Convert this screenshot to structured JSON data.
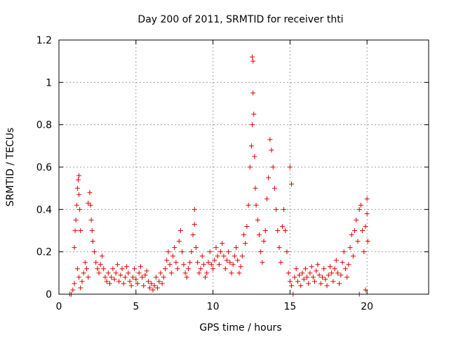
{
  "chart_data": {
    "type": "scatter",
    "title": "Day 200 of 2011, SRMTID for receiver thti",
    "xlabel": "GPS time / hours",
    "ylabel": "SRMTID / TECUs",
    "xlim": [
      0,
      24
    ],
    "ylim": [
      0,
      1.2
    ],
    "xticks": [
      0,
      5,
      10,
      15,
      20
    ],
    "yticks": [
      0,
      0.2,
      0.4,
      0.6,
      0.8,
      1,
      1.2
    ],
    "xtick_labels": [
      "0",
      "5",
      "10",
      "15",
      "20"
    ],
    "ytick_labels": [
      "0",
      "0.2",
      "0.4",
      "0.6",
      "0.8",
      "1",
      "1.2"
    ],
    "grid": true,
    "marker": "+",
    "color": "#e00000",
    "series": [
      {
        "name": "SRMTID",
        "points": [
          [
            0.7,
            0.0
          ],
          [
            0.8,
            0.0
          ],
          [
            0.9,
            0.02
          ],
          [
            1.0,
            0.05
          ],
          [
            1.0,
            0.22
          ],
          [
            1.05,
            0.3
          ],
          [
            1.1,
            0.35
          ],
          [
            1.15,
            0.42
          ],
          [
            1.2,
            0.5
          ],
          [
            1.25,
            0.54
          ],
          [
            1.3,
            0.56
          ],
          [
            1.3,
            0.47
          ],
          [
            1.35,
            0.4
          ],
          [
            1.4,
            0.3
          ],
          [
            1.2,
            0.12
          ],
          [
            1.3,
            0.08
          ],
          [
            1.4,
            0.03
          ],
          [
            1.5,
            0.06
          ],
          [
            1.6,
            0.1
          ],
          [
            1.7,
            0.15
          ],
          [
            1.8,
            0.12
          ],
          [
            1.9,
            0.08
          ],
          [
            1.9,
            0.43
          ],
          [
            2.0,
            0.48
          ],
          [
            2.05,
            0.42
          ],
          [
            2.1,
            0.35
          ],
          [
            2.15,
            0.3
          ],
          [
            2.2,
            0.25
          ],
          [
            2.3,
            0.2
          ],
          [
            2.4,
            0.15
          ],
          [
            2.5,
            0.12
          ],
          [
            2.6,
            0.1
          ],
          [
            2.7,
            0.14
          ],
          [
            2.8,
            0.18
          ],
          [
            2.9,
            0.12
          ],
          [
            3.0,
            0.08
          ],
          [
            3.1,
            0.06
          ],
          [
            3.2,
            0.1
          ],
          [
            3.3,
            0.05
          ],
          [
            3.4,
            0.08
          ],
          [
            3.5,
            0.12
          ],
          [
            3.6,
            0.07
          ],
          [
            3.7,
            0.1
          ],
          [
            3.8,
            0.14
          ],
          [
            3.9,
            0.06
          ],
          [
            4.0,
            0.09
          ],
          [
            4.1,
            0.12
          ],
          [
            4.2,
            0.05
          ],
          [
            4.3,
            0.08
          ],
          [
            4.4,
            0.13
          ],
          [
            4.5,
            0.1
          ],
          [
            4.6,
            0.06
          ],
          [
            4.7,
            0.04
          ],
          [
            4.8,
            0.08
          ],
          [
            4.9,
            0.12
          ],
          [
            5.0,
            0.07
          ],
          [
            5.1,
            0.05
          ],
          [
            5.2,
            0.1
          ],
          [
            5.3,
            0.13
          ],
          [
            5.4,
            0.08
          ],
          [
            5.5,
            0.04
          ],
          [
            5.6,
            0.09
          ],
          [
            5.7,
            0.11
          ],
          [
            5.8,
            0.06
          ],
          [
            5.9,
            0.03
          ],
          [
            6.0,
            0.05
          ],
          [
            6.1,
            0.02
          ],
          [
            6.2,
            0.04
          ],
          [
            6.3,
            0.08
          ],
          [
            6.4,
            0.03
          ],
          [
            6.5,
            0.06
          ],
          [
            6.6,
            0.1
          ],
          [
            6.7,
            0.05
          ],
          [
            6.8,
            0.08
          ],
          [
            6.9,
            0.12
          ],
          [
            7.0,
            0.16
          ],
          [
            7.1,
            0.2
          ],
          [
            7.2,
            0.14
          ],
          [
            7.3,
            0.1
          ],
          [
            7.4,
            0.18
          ],
          [
            7.5,
            0.22
          ],
          [
            7.6,
            0.15
          ],
          [
            7.7,
            0.12
          ],
          [
            7.8,
            0.25
          ],
          [
            7.9,
            0.3
          ],
          [
            8.0,
            0.2
          ],
          [
            8.1,
            0.14
          ],
          [
            8.2,
            0.1
          ],
          [
            8.3,
            0.08
          ],
          [
            8.4,
            0.12
          ],
          [
            8.5,
            0.15
          ],
          [
            8.6,
            0.2
          ],
          [
            8.7,
            0.28
          ],
          [
            8.8,
            0.4
          ],
          [
            8.8,
            0.33
          ],
          [
            8.9,
            0.22
          ],
          [
            9.0,
            0.15
          ],
          [
            9.1,
            0.1
          ],
          [
            9.2,
            0.12
          ],
          [
            9.3,
            0.18
          ],
          [
            9.4,
            0.14
          ],
          [
            9.5,
            0.08
          ],
          [
            9.6,
            0.1
          ],
          [
            9.7,
            0.15
          ],
          [
            9.8,
            0.2
          ],
          [
            9.9,
            0.14
          ],
          [
            10.0,
            0.12
          ],
          [
            10.1,
            0.16
          ],
          [
            10.2,
            0.22
          ],
          [
            10.3,
            0.18
          ],
          [
            10.4,
            0.14
          ],
          [
            10.5,
            0.2
          ],
          [
            10.6,
            0.24
          ],
          [
            10.7,
            0.18
          ],
          [
            10.8,
            0.12
          ],
          [
            10.9,
            0.16
          ],
          [
            11.0,
            0.2
          ],
          [
            11.1,
            0.15
          ],
          [
            11.2,
            0.1
          ],
          [
            11.3,
            0.14
          ],
          [
            11.4,
            0.18
          ],
          [
            11.5,
            0.22
          ],
          [
            11.6,
            0.16
          ],
          [
            11.7,
            0.1
          ],
          [
            11.8,
            0.13
          ],
          [
            11.9,
            0.18
          ],
          [
            12.0,
            0.28
          ],
          [
            12.1,
            0.24
          ],
          [
            12.2,
            0.32
          ],
          [
            12.3,
            0.42
          ],
          [
            12.4,
            0.6
          ],
          [
            12.5,
            0.7
          ],
          [
            12.55,
            0.8
          ],
          [
            12.6,
            0.95
          ],
          [
            12.55,
            1.12
          ],
          [
            12.6,
            1.1
          ],
          [
            12.65,
            0.85
          ],
          [
            12.7,
            0.65
          ],
          [
            12.75,
            0.5
          ],
          [
            12.8,
            0.42
          ],
          [
            12.9,
            0.35
          ],
          [
            13.0,
            0.28
          ],
          [
            13.1,
            0.2
          ],
          [
            13.2,
            0.15
          ],
          [
            13.3,
            0.25
          ],
          [
            13.4,
            0.3
          ],
          [
            13.5,
            0.45
          ],
          [
            13.6,
            0.55
          ],
          [
            13.7,
            0.73
          ],
          [
            13.8,
            0.68
          ],
          [
            13.9,
            0.6
          ],
          [
            14.0,
            0.5
          ],
          [
            14.1,
            0.4
          ],
          [
            14.2,
            0.3
          ],
          [
            14.3,
            0.22
          ],
          [
            14.4,
            0.15
          ],
          [
            14.5,
            0.32
          ],
          [
            14.6,
            0.4
          ],
          [
            14.7,
            0.3
          ],
          [
            14.8,
            0.2
          ],
          [
            14.9,
            0.1
          ],
          [
            15.0,
            0.6
          ],
          [
            15.1,
            0.52
          ],
          [
            15.0,
            0.06
          ],
          [
            15.1,
            0.04
          ],
          [
            15.2,
            0.0
          ],
          [
            15.3,
            0.08
          ],
          [
            15.4,
            0.12
          ],
          [
            15.5,
            0.06
          ],
          [
            15.6,
            0.09
          ],
          [
            15.7,
            0.04
          ],
          [
            15.8,
            0.1
          ],
          [
            15.9,
            0.07
          ],
          [
            16.0,
            0.12
          ],
          [
            16.1,
            0.08
          ],
          [
            16.2,
            0.05
          ],
          [
            16.3,
            0.1
          ],
          [
            16.4,
            0.13
          ],
          [
            16.5,
            0.08
          ],
          [
            16.6,
            0.06
          ],
          [
            16.7,
            0.11
          ],
          [
            16.8,
            0.14
          ],
          [
            16.9,
            0.09
          ],
          [
            17.0,
            0.05
          ],
          [
            17.1,
            0.08
          ],
          [
            17.2,
            0.12
          ],
          [
            17.3,
            0.07
          ],
          [
            17.4,
            0.04
          ],
          [
            17.5,
            0.09
          ],
          [
            17.6,
            0.13
          ],
          [
            17.7,
            0.1
          ],
          [
            17.8,
            0.06
          ],
          [
            17.9,
            0.12
          ],
          [
            18.0,
            0.16
          ],
          [
            18.1,
            0.1
          ],
          [
            18.2,
            0.05
          ],
          [
            18.3,
            0.09
          ],
          [
            18.4,
            0.15
          ],
          [
            18.5,
            0.2
          ],
          [
            18.6,
            0.12
          ],
          [
            18.7,
            0.08
          ],
          [
            18.8,
            0.14
          ],
          [
            18.9,
            0.22
          ],
          [
            19.0,
            0.28
          ],
          [
            19.1,
            0.18
          ],
          [
            19.2,
            0.3
          ],
          [
            19.3,
            0.35
          ],
          [
            19.4,
            0.25
          ],
          [
            19.5,
            0.4
          ],
          [
            19.6,
            0.42
          ],
          [
            19.7,
            0.3
          ],
          [
            19.8,
            0.2
          ],
          [
            19.9,
            0.32
          ],
          [
            20.0,
            0.45
          ],
          [
            20.0,
            0.38
          ],
          [
            20.05,
            0.25
          ],
          [
            19.5,
            0.0
          ],
          [
            19.9,
            0.02
          ]
        ]
      }
    ]
  }
}
